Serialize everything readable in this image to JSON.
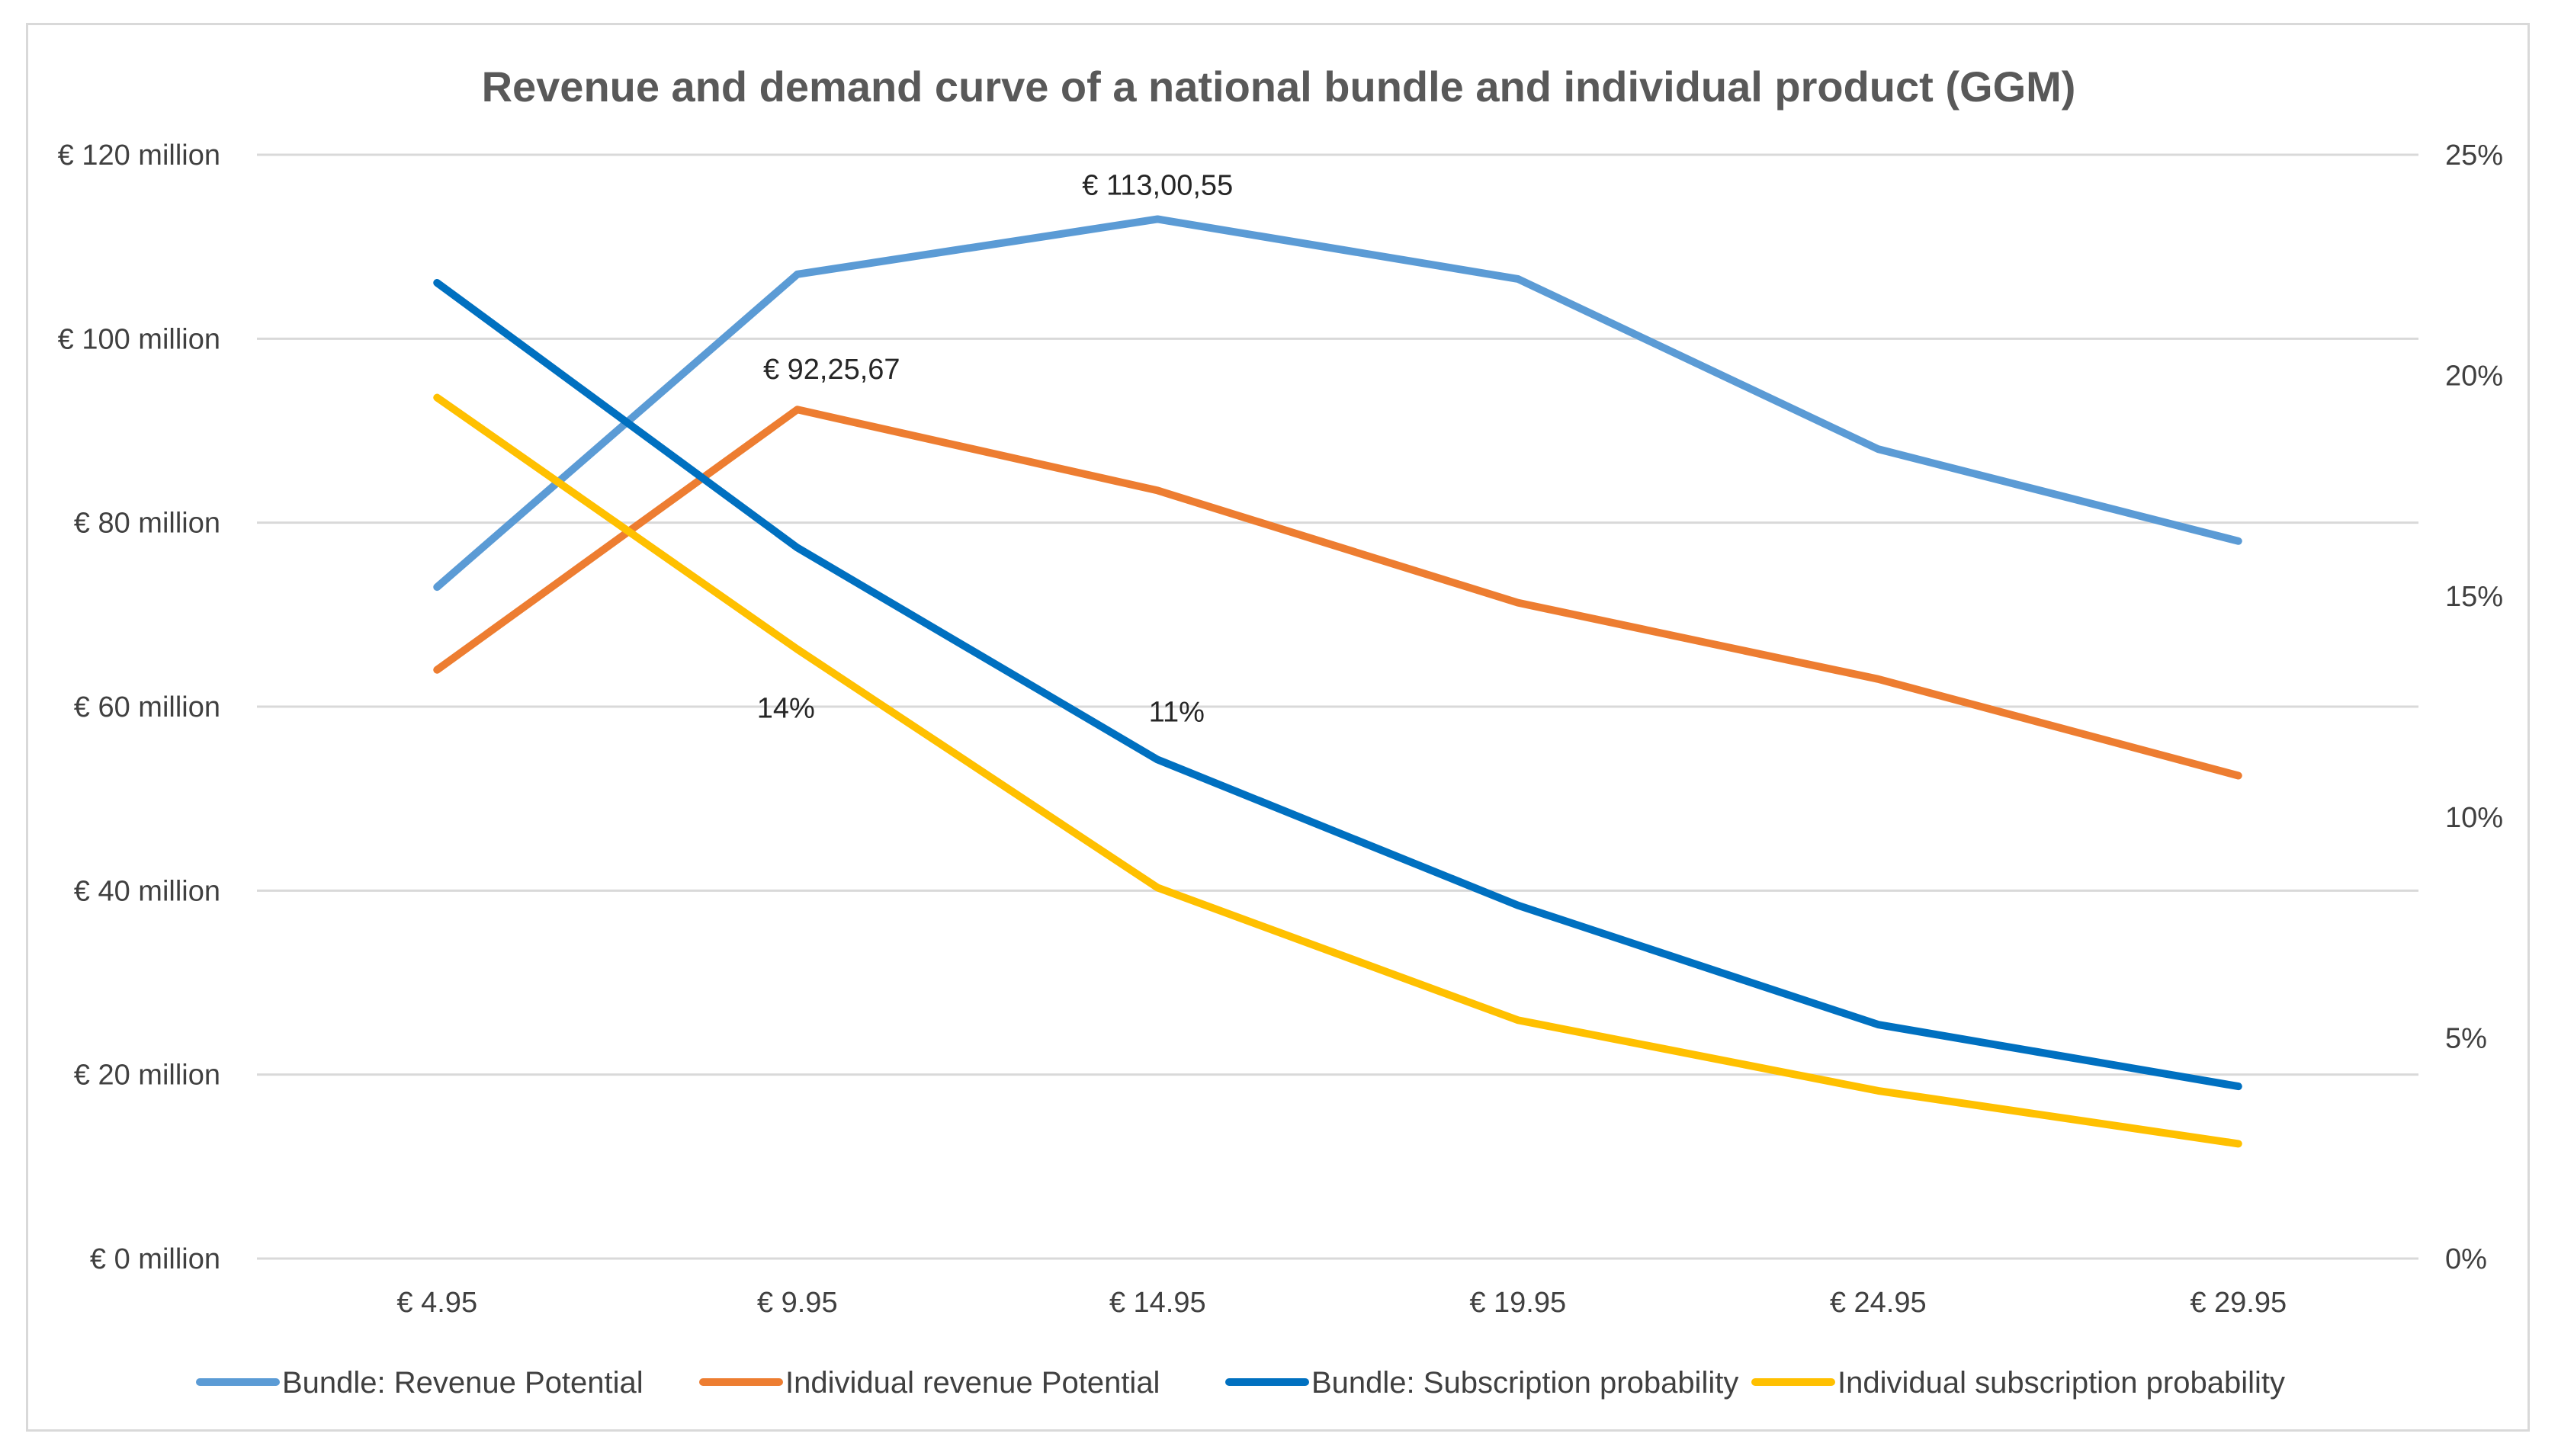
{
  "chart_data": {
    "type": "line",
    "title": "Revenue and demand curve of a national bundle and individual product (GGM)",
    "categories": [
      "€ 4.95",
      "€ 9.95",
      "€ 14.95",
      "€ 19.95",
      "€ 24.95",
      "€ 29.95"
    ],
    "y_left": {
      "ylim": [
        0,
        120
      ],
      "ticks": [
        0,
        20,
        40,
        60,
        80,
        100,
        120
      ],
      "tick_labels": [
        "€ 0 million",
        "€ 20 million",
        "€ 40 million",
        "€ 60 million",
        "€ 80 million",
        "€ 100 million",
        "€ 120 million"
      ]
    },
    "y_right": {
      "ylim": [
        0,
        25
      ],
      "ticks": [
        0,
        5,
        10,
        15,
        20,
        25
      ],
      "tick_labels": [
        "0%",
        "5%",
        "10%",
        "15%",
        "20%",
        "25%"
      ]
    },
    "series": [
      {
        "name": "Bundle: Revenue Potential",
        "axis": "left",
        "color": "#5B9BD5",
        "values": [
          73,
          107,
          113,
          106.5,
          88,
          78
        ]
      },
      {
        "name": "Individual revenue Potential",
        "axis": "left",
        "color": "#ED7D31",
        "values": [
          64,
          92.3,
          83.5,
          71.3,
          63,
          52.5
        ]
      },
      {
        "name": "Bundle: Subscription probability",
        "axis": "right",
        "color": "#0070C0",
        "values": [
          22.1,
          16.1,
          11.3,
          8,
          5.3,
          3.9
        ]
      },
      {
        "name": "Individual subscription probability",
        "axis": "right",
        "color": "#FFC000",
        "values": [
          19.5,
          13.8,
          8.4,
          5.4,
          3.8,
          2.6
        ]
      }
    ],
    "annotations": [
      {
        "text": "€ 113,00,55",
        "series": 0,
        "index": 2
      },
      {
        "text": "€ 92,25,67",
        "series": 1,
        "index": 1
      },
      {
        "text": "14%",
        "series": 3,
        "index": 1
      },
      {
        "text": "11%",
        "series": 2,
        "index": 2
      }
    ],
    "legend_position": "bottom"
  }
}
